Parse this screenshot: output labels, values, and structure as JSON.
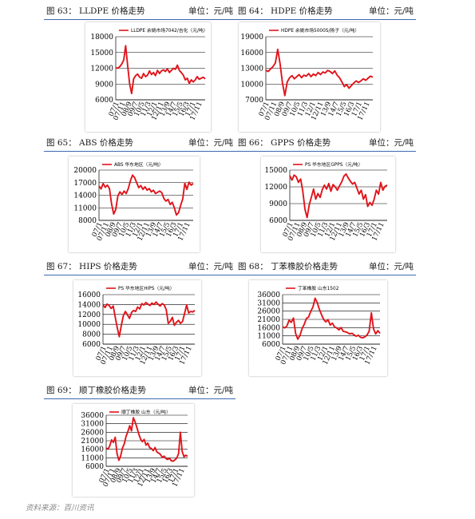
{
  "source": "资料来源：百川资讯",
  "chart_data": [
    {
      "id": "fig63",
      "fig_title": "图 63：  LLDPE 价格走势",
      "unit": "单位：元/吨",
      "type": "line",
      "legend": "LLDPE 余姚市场7042/吉化（元/吨）",
      "ylim": [
        6000,
        18000
      ],
      "yticks": [
        "18000",
        "15000",
        "12000",
        "9000",
        "6000"
      ],
      "ytick_values": [
        18000,
        15000,
        12000,
        9000,
        6000
      ],
      "xticks": [
        "07/1",
        "07/11",
        "08/9",
        "09/7",
        "10/5",
        "11/3",
        "12/1",
        "12/11",
        "13/9",
        "14/7",
        "15/5",
        "16/3",
        "17/1",
        "17/11"
      ],
      "series": [
        {
          "values": [
            12100,
            12000,
            12300,
            12800,
            13600,
            16300,
            12500,
            9000,
            7200,
            10000,
            10600,
            10900,
            10300,
            10100,
            11000,
            10400,
            10700,
            11500,
            10800,
            11200,
            10600,
            11600,
            11000,
            11500,
            11700,
            11400,
            11900,
            11200,
            11600,
            12000,
            11800,
            12600,
            11600,
            11200,
            10700,
            9800,
            10100,
            9100,
            9800,
            9400,
            9800,
            10400,
            9900,
            10100,
            10300,
            10000
          ]
        }
      ]
    },
    {
      "id": "fig64",
      "fig_title": "图 64：  HDPE 价格走势",
      "unit": "单位：元/吨",
      "type": "line",
      "legend": "HDPE 余姚市场5000S/扬子（元/吨）",
      "ylim": [
        7000,
        19000
      ],
      "yticks": [
        "19000",
        "16000",
        "13000",
        "10000",
        "7000"
      ],
      "ytick_values": [
        19000,
        16000,
        13000,
        10000,
        7000
      ],
      "xticks": [
        "07/1",
        "07/11",
        "08/9",
        "09/7",
        "10/5",
        "11/3",
        "12/1",
        "12/11",
        "13/9",
        "14/7",
        "15/5",
        "16/3",
        "17/1",
        "17/11"
      ],
      "series": [
        {
          "values": [
            12600,
            12400,
            12900,
            13300,
            14000,
            16600,
            13800,
            10200,
            7800,
            10400,
            11200,
            11600,
            11000,
            11400,
            11800,
            11200,
            11700,
            11500,
            12000,
            11400,
            11900,
            11600,
            12200,
            11800,
            12300,
            12100,
            12600,
            12400,
            12000,
            12500,
            11700,
            11200,
            10400,
            9500,
            9900,
            9200,
            9700,
            10200,
            10600,
            10300,
            10600,
            11000,
            10700,
            11100,
            11500,
            11300
          ]
        }
      ]
    },
    {
      "id": "fig65",
      "fig_title": "图 65：  ABS 价格走势",
      "unit": "单位：元/吨",
      "type": "line",
      "legend": "ABS 华东地区（元/吨）",
      "ylim": [
        8000,
        20000
      ],
      "yticks": [
        "20000",
        "17000",
        "14000",
        "11000",
        "8000"
      ],
      "ytick_values": [
        20000,
        17000,
        14000,
        11000,
        8000
      ],
      "xticks": [
        "07/1",
        "07/11",
        "08/9",
        "09/7",
        "10/5",
        "11/3",
        "12/1",
        "12/11",
        "13/9",
        "14/7",
        "15/5",
        "16/3",
        "17/1",
        "17/11"
      ],
      "series": [
        {
          "values": [
            16200,
            15500,
            16800,
            15900,
            16400,
            15600,
            12000,
            9500,
            10600,
            13800,
            14800,
            14200,
            15000,
            14400,
            15600,
            17400,
            18800,
            18200,
            17000,
            15800,
            16300,
            15400,
            16000,
            15200,
            15600,
            14800,
            15200,
            14400,
            14700,
            15000,
            14600,
            13200,
            12600,
            13000,
            11800,
            12300,
            11000,
            9300,
            9800,
            11600,
            13100,
            16900,
            15400,
            17100,
            16400,
            16800
          ]
        }
      ]
    },
    {
      "id": "fig66",
      "fig_title": "图 66：  GPPS 价格走势",
      "unit": "单位：元/吨",
      "type": "line",
      "legend": "PS 华东地区GPPS（元/吨）",
      "ylim": [
        6000,
        15000
      ],
      "yticks": [
        "15000",
        "12000",
        "9000",
        "6000"
      ],
      "ytick_values": [
        15000,
        12000,
        9000,
        6000
      ],
      "xticks": [
        "07/1",
        "07/11",
        "08/9",
        "09/7",
        "10/5",
        "11/3",
        "12/1",
        "12/11",
        "13/9",
        "14/7",
        "15/5",
        "16/3",
        "17/1",
        "17/11"
      ],
      "series": [
        {
          "values": [
            14000,
            13200,
            14100,
            13800,
            12800,
            13400,
            11200,
            8000,
            6500,
            8800,
            10200,
            11600,
            9800,
            10800,
            10100,
            11500,
            12300,
            11600,
            12600,
            11200,
            12400,
            12000,
            11400,
            12200,
            12900,
            13900,
            14300,
            13600,
            13000,
            12500,
            12800,
            11800,
            10700,
            11400,
            9800,
            10600,
            8500,
            9200,
            8700,
            9800,
            11400,
            10700,
            12800,
            11400,
            12100,
            12300
          ]
        }
      ]
    },
    {
      "id": "fig67",
      "fig_title": "图 67：  HIPS 价格走势",
      "unit": "单位：元/吨",
      "type": "line",
      "legend": "PS 华东地区HIPS（元/吨）",
      "ylim": [
        6000,
        16000
      ],
      "yticks": [
        "16000",
        "14000",
        "12000",
        "10000",
        "8000",
        "6000"
      ],
      "ytick_values": [
        16000,
        14000,
        12000,
        10000,
        8000,
        6000
      ],
      "xticks": [
        "07/1",
        "07/11",
        "08/9",
        "09/7",
        "10/5",
        "11/3",
        "12/1",
        "12/11",
        "13/9",
        "14/7",
        "15/5",
        "16/3",
        "17/1",
        "17/11"
      ],
      "series": [
        {
          "values": [
            13900,
            13400,
            14100,
            13800,
            13200,
            13700,
            11500,
            9300,
            7500,
            9800,
            11800,
            12600,
            11900,
            11200,
            12400,
            12800,
            12600,
            13500,
            13100,
            14200,
            13900,
            14400,
            14100,
            13800,
            14300,
            14000,
            14500,
            14100,
            13700,
            14200,
            13900,
            13000,
            10200,
            10600,
            11400,
            9800,
            10400,
            10800,
            10200,
            10600,
            12200,
            13900,
            12300,
            12600,
            12500,
            12800
          ]
        }
      ]
    },
    {
      "id": "fig68",
      "fig_title": "图 68：  丁苯橡胶价格走势",
      "unit": "单位：元/吨",
      "type": "line",
      "legend": "丁苯橡胶 山东1502",
      "ylim": [
        6000,
        36000
      ],
      "yticks": [
        "36000",
        "31000",
        "26000",
        "21000",
        "16000",
        "11000",
        "6000"
      ],
      "ytick_values": [
        36000,
        31000,
        26000,
        21000,
        16000,
        11000,
        6000
      ],
      "xticks": [
        "07/1",
        "07/11",
        "08/9",
        "09/7",
        "10/5",
        "11/3",
        "12/1",
        "12/11",
        "13/9",
        "14/7",
        "15/5",
        "16/3",
        "17/1",
        "17/11"
      ],
      "series": [
        {
          "values": [
            16500,
            15800,
            17000,
            20500,
            19200,
            21800,
            12500,
            9000,
            11200,
            15400,
            18000,
            21600,
            22400,
            25800,
            28500,
            33800,
            31200,
            27000,
            23800,
            20900,
            19500,
            20800,
            17600,
            18700,
            16400,
            15800,
            14600,
            16000,
            13800,
            13500,
            13000,
            12200,
            12600,
            11600,
            10800,
            11400,
            10100,
            9800,
            10400,
            11500,
            13800,
            25000,
            15200,
            12200,
            14200,
            12500
          ]
        }
      ]
    },
    {
      "id": "fig69",
      "fig_title": "图 69：  顺丁橡胶价格走势",
      "unit": "单位：元/吨",
      "type": "line",
      "legend": "顺丁橡胶 山东（元/吨）",
      "ylim": [
        6000,
        36000
      ],
      "yticks": [
        "36000",
        "31000",
        "26000",
        "21000",
        "16000",
        "11000",
        "6000"
      ],
      "ytick_values": [
        36000,
        31000,
        26000,
        21000,
        16000,
        11000,
        6000
      ],
      "xticks": [
        "07/1",
        "07/11",
        "08/9",
        "09/7",
        "10/5",
        "11/3",
        "12/1",
        "12/11",
        "13/9",
        "14/7",
        "15/5",
        "16/3",
        "17/1",
        "17/11"
      ],
      "series": [
        {
          "values": [
            16800,
            16100,
            18000,
            21500,
            20000,
            23000,
            13500,
            9500,
            12000,
            16700,
            19200,
            23600,
            26400,
            29800,
            26800,
            34500,
            32000,
            28800,
            25000,
            22000,
            20500,
            21800,
            18400,
            19600,
            17000,
            16400,
            15200,
            17000,
            14400,
            13800,
            13000,
            11200,
            12000,
            10600,
            10000,
            10800,
            9200,
            9000,
            9800,
            10800,
            13500,
            26000,
            14800,
            11600,
            12500,
            11800
          ]
        }
      ]
    }
  ]
}
